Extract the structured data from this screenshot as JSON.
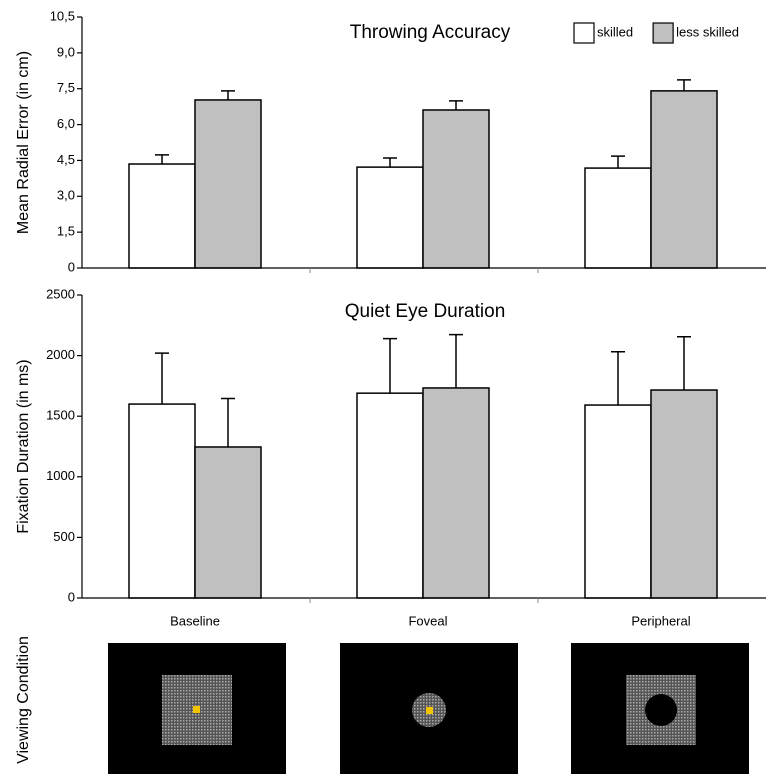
{
  "chart_data": [
    {
      "type": "bar",
      "title": "Throwing Accuracy",
      "ylabel": "Mean Radial Error (in cm)",
      "categories": [
        "Baseline",
        "Foveal",
        "Peripheral"
      ],
      "series": [
        {
          "name": "skilled",
          "color": "#ffffff",
          "values": [
            4.35,
            4.22,
            4.18
          ],
          "errors": [
            0.38,
            0.38,
            0.5
          ]
        },
        {
          "name": "less skilled",
          "color": "#c0c0c0",
          "values": [
            7.03,
            6.61,
            7.41
          ],
          "errors": [
            0.38,
            0.38,
            0.46
          ]
        }
      ],
      "ylim": [
        0,
        10.5
      ],
      "yticks": [
        0,
        {
          "value": 1.5,
          "label": "1,5"
        },
        {
          "value": 3,
          "label": "3,0"
        },
        {
          "value": 4.5,
          "label": "4,5"
        },
        {
          "value": 6,
          "label": "6,0"
        },
        {
          "value": 7.5,
          "label": "7,5"
        },
        {
          "value": 9,
          "label": "9,0"
        },
        {
          "value": 10.5,
          "label": "10,5"
        }
      ],
      "legend": "upper right"
    },
    {
      "type": "bar",
      "title": "Quiet Eye Duration",
      "ylabel": "Fixation Duration (in ms)",
      "categories": [
        "Baseline",
        "Foveal",
        "Peripheral"
      ],
      "series": [
        {
          "color": "#ffffff",
          "values": [
            1600,
            1690,
            1592
          ],
          "errors": [
            420,
            450,
            440
          ]
        },
        {
          "color": "#c0c0c0",
          "values": [
            1246,
            1733,
            1716
          ],
          "errors": [
            400,
            440,
            440
          ]
        }
      ],
      "ylim": [
        0,
        2500
      ],
      "yticks": [
        0,
        500,
        1000,
        1500,
        2000,
        2500
      ]
    }
  ],
  "viewing_condition": {
    "label": "Viewing Condition"
  }
}
